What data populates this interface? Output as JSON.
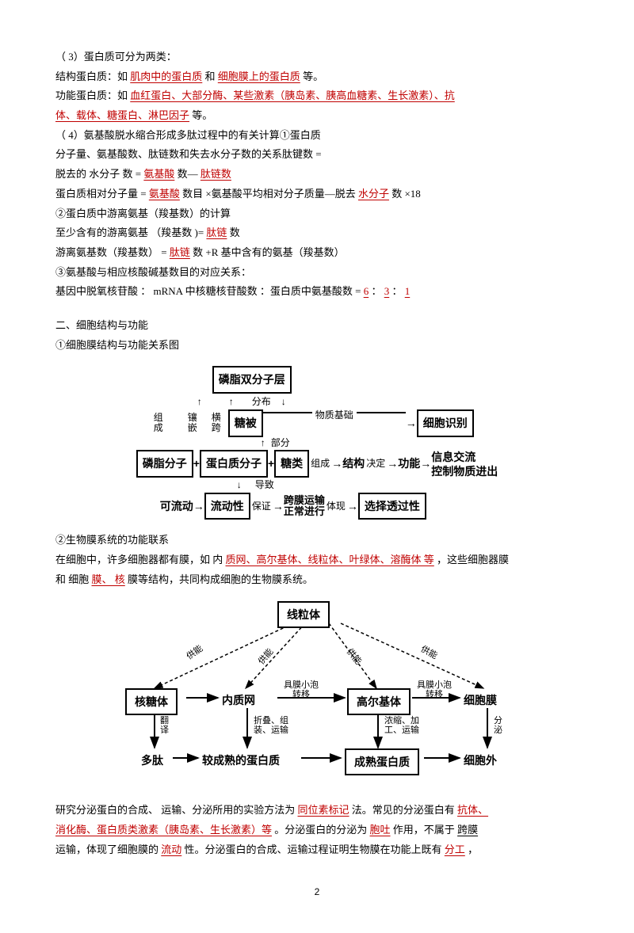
{
  "para1": {
    "lead": "（ 3）蛋白质可分为两类：",
    "line2a": "结构蛋白质：如 ",
    "line2b": "肌肉中的蛋白质",
    "line2c": " 和 ",
    "line2d": "细胞膜上的蛋白质",
    "line2e": " 等。",
    "line3a": "功能蛋白质：如 ",
    "line3b": "血红蛋白、大部分酶、某些激素（胰岛素、胰高血糖素、生长激素）、抗",
    "line4b": "体、载体、糖蛋白、淋巴因子",
    "line4c": " 等。",
    "line5": "（ 4）氨基酸脱水缩合形成多肽过程中的有关计算①蛋白质",
    "line6": "分子量、氨基酸数、肽链数和失去水分子数的关系肽键数 =",
    "line7a": "脱去的 水分子 数 =",
    "line7b": "氨基酸",
    "line7c": " 数— ",
    "line7d": "肽链数",
    "line8a": "蛋白质相对分子量 =",
    "line8b": "氨基酸",
    "line8c": " 数目 ×氨基酸平均相对分子质量—脱去 ",
    "line8d": "水分子",
    "line8e": " 数 ×18",
    "line9": "②蛋白质中游离氨基（羧基数）的计算",
    "line10a": "至少含有的游离氨基 （羧基数 )=",
    "line10b": "肽链",
    "line10c": " 数",
    "line11a": "游离氨基数（羧基数） =",
    "line11b": "肽链",
    "line11c": " 数 +R 基中含有的氨基（羧基数）",
    "line12": "③氨基酸与相应核酸碱基数目的对应关系：",
    "line13a": "基因中脱氧核苷酸 ： mRNA 中核糖核苷酸数 ：蛋白质中氨基酸数 =",
    "line13b": "6",
    "line13c": "：",
    "line13d": "3",
    "line13e": "：",
    "line13f": "1"
  },
  "sec2": {
    "title": "二、细胞结构与功能",
    "sub1": "①细胞膜结构与功能关系图"
  },
  "d1": {
    "top": "磷脂双分子层",
    "compose": "组\n成",
    "embed": "镶\n嵌",
    "span": "横\n跨",
    "dist": "分布",
    "part": "部分",
    "basis": "物质基础",
    "tangbei": "糖被",
    "mid1": "磷脂分子",
    "plus": "+",
    "mid2": "蛋白质分子",
    "mid3": "糖类",
    "form": "组成",
    "arrow": "→",
    "struct": "结构",
    "decide": "决定",
    "func": "功能",
    "right1": "细胞识别",
    "right2": "信息交流",
    "right3": "控制物质进出",
    "lead": "导致",
    "flow1": "可流动",
    "flow2": "流动性",
    "ensure": "保证",
    "trans": "跨膜运输\n正常进行",
    "reflect": "体现",
    "select": "选择透过性"
  },
  "sub2": {
    "title": "②生物膜系统的功能联系",
    "p1a": "在细胞中，许多细胞器都有膜，如 内",
    "p1b": "质网、高尔基体、线粒体、叶绿体、溶酶体 等",
    "p1c": "，这些细胞器膜",
    "p2a": "和 细胞",
    "p2b": "膜、 核",
    "p2c": "膜等结构，共同构成细胞的生物膜系统。"
  },
  "d2": {
    "mito": "线粒体",
    "supply": "供能",
    "ribo": "核糖体",
    "er": "内质网",
    "golgi": "高尔基体",
    "mem": "细胞膜",
    "vesicle": "具膜小泡\n转移",
    "fanyi": "翻\n译",
    "fold": "折叠、组\n装、运输",
    "conc": "浓缩、加\n工、运输",
    "secr": "分\n泌",
    "poly": "多肽",
    "semi": "较成熟的蛋白质",
    "mature": "成熟蛋白质",
    "out": "细胞外"
  },
  "last": {
    "p1a": "研究分泌蛋白的合成、 运输、分泌所用的实验方法为 ",
    "p1b": "同位素标记",
    "p1c": " 法。常见的分泌蛋白有 ",
    "p1d": "抗体、",
    "p2a": "消化酶、蛋白质类激素（胰岛素、生长激素）等",
    "p2b": " 。分泌蛋白的分泌为 ",
    "p2c": "胞吐",
    "p2d": " 作用，不属于 ",
    "p2e": "跨膜",
    "p3a": "运输，体现了细胞膜的 ",
    "p3b": "流动",
    "p3c": " 性。分泌蛋白的合成、运输过程证明生物膜在功能上既有 ",
    "p3d": "分工",
    "p3e": "，"
  },
  "pagenum": "2"
}
